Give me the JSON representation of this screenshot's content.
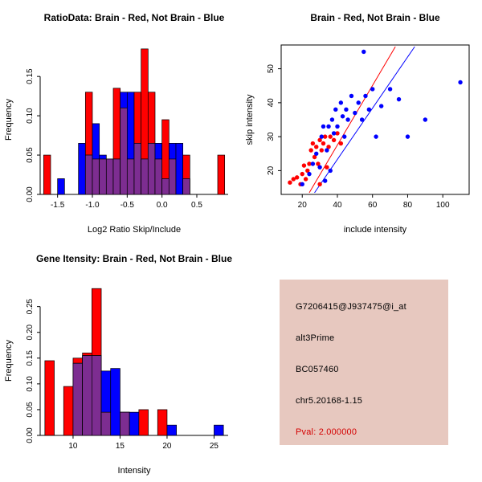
{
  "colors": {
    "red": "#FF0000",
    "blue": "#0000FF",
    "overlap": "#7D2D91",
    "axis": "#000000",
    "info_bg": "#E7C8BF",
    "pval_red": "#D40000"
  },
  "chart_data": [
    {
      "type": "histogram",
      "title": "RatioData: Brain - Red, Not Brain - Blue",
      "xlabel": "Log2 Ratio Skip/Include",
      "ylabel": "Frequency",
      "xlim": [
        -1.75,
        0.95
      ],
      "ylim": [
        0,
        0.19
      ],
      "xticks": {
        "values": [
          -1.5,
          -1.0,
          -0.5,
          0.0,
          0.5
        ],
        "labels": [
          "-1.5",
          "-1.0",
          "-0.5",
          "0.0",
          "0.5"
        ]
      },
      "yticks": {
        "values": [
          0,
          0.05,
          0.1,
          0.15
        ],
        "labels": [
          "0.00",
          "0.05",
          "0.10",
          "0.15"
        ]
      },
      "bin_width": 0.1,
      "series_legend": [
        {
          "name": "Brain",
          "color": "red"
        },
        {
          "name": "Not Brain",
          "color": "blue"
        }
      ],
      "bins": [
        {
          "x": -1.7,
          "red": 0.05,
          "blue": 0
        },
        {
          "x": -1.5,
          "red": 0,
          "blue": 0.02
        },
        {
          "x": -1.2,
          "red": 0,
          "blue": 0.065
        },
        {
          "x": -1.1,
          "red": 0.13,
          "blue": 0.05
        },
        {
          "x": -1.0,
          "red": 0.045,
          "blue": 0.09
        },
        {
          "x": -0.9,
          "red": 0.045,
          "blue": 0.05
        },
        {
          "x": -0.8,
          "red": 0.045,
          "blue": 0.045
        },
        {
          "x": -0.7,
          "red": 0.135,
          "blue": 0.045
        },
        {
          "x": -0.6,
          "red": 0.11,
          "blue": 0.13
        },
        {
          "x": -0.5,
          "red": 0.045,
          "blue": 0.13
        },
        {
          "x": -0.4,
          "red": 0.13,
          "blue": 0.065
        },
        {
          "x": -0.3,
          "red": 0.185,
          "blue": 0.045
        },
        {
          "x": -0.2,
          "red": 0.13,
          "blue": 0.065
        },
        {
          "x": -0.1,
          "red": 0.045,
          "blue": 0.065
        },
        {
          "x": 0.0,
          "red": 0.095,
          "blue": 0.02
        },
        {
          "x": 0.1,
          "red": 0.045,
          "blue": 0.065
        },
        {
          "x": 0.2,
          "red": 0,
          "blue": 0.065
        },
        {
          "x": 0.3,
          "red": 0.05,
          "blue": 0.02
        },
        {
          "x": 0.8,
          "red": 0.05,
          "blue": 0
        }
      ]
    },
    {
      "type": "scatter",
      "title": "Brain - Red, Not Brain - Blue",
      "xlabel": "include intensity",
      "ylabel": "skip intensity",
      "xlim": [
        8,
        115
      ],
      "ylim": [
        13,
        57
      ],
      "xticks": {
        "values": [
          20,
          40,
          60,
          80,
          100
        ],
        "labels": [
          "20",
          "40",
          "60",
          "80",
          "100"
        ]
      },
      "yticks": {
        "values": [
          20,
          30,
          40,
          50
        ],
        "labels": [
          "20",
          "30",
          "40",
          "50"
        ]
      },
      "red_points": [
        [
          13,
          16.5
        ],
        [
          15,
          17.5
        ],
        [
          17,
          18
        ],
        [
          19,
          16
        ],
        [
          20,
          19
        ],
        [
          21,
          21.5
        ],
        [
          22,
          17.5
        ],
        [
          23,
          20
        ],
        [
          24,
          22
        ],
        [
          25,
          26
        ],
        [
          26,
          28
        ],
        [
          27,
          24
        ],
        [
          28,
          27
        ],
        [
          29,
          22
        ],
        [
          30,
          16
        ],
        [
          30,
          29
        ],
        [
          31,
          26
        ],
        [
          32,
          28
        ],
        [
          33,
          30
        ],
        [
          34,
          21
        ],
        [
          35,
          27
        ],
        [
          36,
          30
        ],
        [
          38,
          29
        ],
        [
          40,
          31
        ],
        [
          42,
          28
        ]
      ],
      "blue_points": [
        [
          20,
          16
        ],
        [
          24,
          19
        ],
        [
          26,
          22
        ],
        [
          28,
          25
        ],
        [
          30,
          21
        ],
        [
          31,
          30
        ],
        [
          32,
          33
        ],
        [
          33,
          17
        ],
        [
          34,
          26
        ],
        [
          35,
          33
        ],
        [
          36,
          20
        ],
        [
          37,
          35
        ],
        [
          38,
          31
        ],
        [
          39,
          38
        ],
        [
          40,
          33
        ],
        [
          42,
          40
        ],
        [
          43,
          36
        ],
        [
          44,
          30
        ],
        [
          45,
          38
        ],
        [
          46,
          35
        ],
        [
          48,
          42
        ],
        [
          50,
          37
        ],
        [
          52,
          40
        ],
        [
          54,
          35
        ],
        [
          55,
          55
        ],
        [
          56,
          42
        ],
        [
          58,
          38
        ],
        [
          60,
          44
        ],
        [
          62,
          30
        ],
        [
          65,
          39
        ],
        [
          70,
          44
        ],
        [
          75,
          41
        ],
        [
          80,
          30
        ],
        [
          90,
          35
        ],
        [
          110,
          46
        ]
      ],
      "lines": [
        {
          "color": "red",
          "p1": [
            24,
            13.5
          ],
          "p2": [
            73,
            56.5
          ]
        },
        {
          "color": "blue",
          "p1": [
            27,
            13.5
          ],
          "p2": [
            84,
            56.5
          ]
        }
      ]
    },
    {
      "type": "histogram",
      "title": "Gene Itensity: Brain - Red, Not Brain - Blue",
      "xlabel": "Intensity",
      "ylabel": "Frequency",
      "xlim": [
        6.5,
        26.5
      ],
      "ylim": [
        0,
        0.29
      ],
      "xticks": {
        "values": [
          10,
          15,
          20,
          25
        ],
        "labels": [
          "10",
          "15",
          "20",
          "25"
        ]
      },
      "yticks": {
        "values": [
          0,
          0.05,
          0.1,
          0.15,
          0.2,
          0.25
        ],
        "labels": [
          "0.00",
          "0.05",
          "0.10",
          "0.15",
          "0.20",
          "0.25"
        ]
      },
      "bin_width": 1,
      "series_legend": [
        {
          "name": "Brain",
          "color": "red"
        },
        {
          "name": "Not Brain",
          "color": "blue"
        }
      ],
      "bins": [
        {
          "x": 7,
          "red": 0.145,
          "blue": 0
        },
        {
          "x": 9,
          "red": 0.095,
          "blue": 0
        },
        {
          "x": 10,
          "red": 0.15,
          "blue": 0.14
        },
        {
          "x": 11,
          "red": 0.16,
          "blue": 0.155
        },
        {
          "x": 12,
          "red": 0.285,
          "blue": 0.155
        },
        {
          "x": 13,
          "red": 0.045,
          "blue": 0.125
        },
        {
          "x": 14,
          "red": 0,
          "blue": 0.13
        },
        {
          "x": 15,
          "red": 0.045,
          "blue": 0.045
        },
        {
          "x": 16,
          "red": 0,
          "blue": 0.045
        },
        {
          "x": 17,
          "red": 0.05,
          "blue": 0
        },
        {
          "x": 19,
          "red": 0.05,
          "blue": 0
        },
        {
          "x": 20,
          "red": 0,
          "blue": 0.02
        },
        {
          "x": 25,
          "red": 0,
          "blue": 0.02
        }
      ]
    }
  ],
  "info_panel": {
    "probe_id": "G7206415@J937475@i_at",
    "splice_type": "alt3Prime",
    "accession": "BC057460",
    "locus": "chr5.20168-1.15",
    "pval": "Pval: 2.000000"
  }
}
